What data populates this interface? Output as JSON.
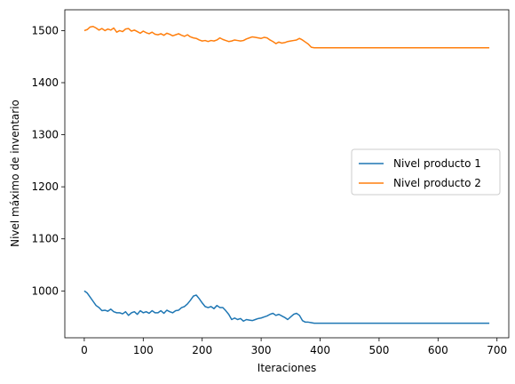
{
  "chart_data": {
    "type": "line",
    "title": "",
    "xlabel": "Iteraciones",
    "ylabel": "Nivel máximo de inventario",
    "xlim": [
      -33,
      720
    ],
    "ylim": [
      910,
      1540
    ],
    "xticks": [
      0,
      100,
      200,
      300,
      400,
      500,
      600,
      700
    ],
    "yticks": [
      1000,
      1100,
      1200,
      1300,
      1400,
      1500
    ],
    "grid": false,
    "legend_position": "center-right",
    "series": [
      {
        "name": "Nivel producto 1",
        "color": "#1f77b4",
        "x": [
          0,
          5,
          10,
          15,
          20,
          25,
          30,
          35,
          40,
          45,
          50,
          55,
          60,
          65,
          70,
          75,
          80,
          85,
          90,
          95,
          100,
          105,
          110,
          115,
          120,
          125,
          130,
          135,
          140,
          145,
          150,
          155,
          160,
          165,
          170,
          175,
          180,
          185,
          190,
          195,
          200,
          205,
          210,
          215,
          220,
          225,
          230,
          235,
          240,
          245,
          250,
          255,
          260,
          265,
          270,
          275,
          280,
          285,
          290,
          295,
          300,
          305,
          310,
          315,
          320,
          325,
          330,
          335,
          340,
          345,
          350,
          355,
          360,
          365,
          370,
          375,
          380,
          385,
          390,
          687
        ],
        "values": [
          1000,
          996,
          988,
          980,
          972,
          968,
          962,
          963,
          961,
          965,
          960,
          958,
          958,
          956,
          960,
          953,
          958,
          960,
          955,
          962,
          958,
          960,
          957,
          962,
          958,
          958,
          962,
          957,
          963,
          960,
          958,
          962,
          963,
          968,
          970,
          975,
          982,
          990,
          992,
          985,
          977,
          970,
          968,
          970,
          966,
          972,
          968,
          968,
          962,
          955,
          945,
          948,
          945,
          947,
          942,
          945,
          944,
          943,
          945,
          947,
          948,
          950,
          952,
          955,
          957,
          953,
          955,
          952,
          949,
          945,
          950,
          955,
          957,
          953,
          943,
          940,
          940,
          939,
          938,
          938
        ]
      },
      {
        "name": "Nivel producto 2",
        "color": "#ff7f0e",
        "x": [
          0,
          5,
          10,
          15,
          20,
          25,
          30,
          35,
          40,
          45,
          50,
          55,
          60,
          65,
          70,
          75,
          80,
          85,
          90,
          95,
          100,
          105,
          110,
          115,
          120,
          125,
          130,
          135,
          140,
          145,
          150,
          155,
          160,
          165,
          170,
          175,
          180,
          185,
          190,
          195,
          200,
          205,
          210,
          215,
          220,
          225,
          230,
          235,
          240,
          245,
          250,
          255,
          260,
          265,
          270,
          275,
          280,
          285,
          290,
          295,
          300,
          305,
          310,
          315,
          320,
          325,
          330,
          335,
          340,
          345,
          350,
          355,
          360,
          365,
          370,
          375,
          380,
          385,
          390,
          687
        ],
        "values": [
          1500,
          1502,
          1507,
          1508,
          1505,
          1501,
          1504,
          1500,
          1503,
          1501,
          1505,
          1497,
          1500,
          1498,
          1503,
          1504,
          1499,
          1501,
          1498,
          1495,
          1499,
          1496,
          1494,
          1497,
          1493,
          1492,
          1494,
          1491,
          1495,
          1493,
          1490,
          1492,
          1494,
          1491,
          1489,
          1492,
          1488,
          1486,
          1485,
          1482,
          1480,
          1481,
          1479,
          1481,
          1480,
          1482,
          1486,
          1483,
          1481,
          1479,
          1480,
          1482,
          1481,
          1480,
          1481,
          1484,
          1486,
          1488,
          1487,
          1486,
          1485,
          1487,
          1486,
          1482,
          1479,
          1475,
          1478,
          1476,
          1477,
          1479,
          1480,
          1481,
          1482,
          1485,
          1482,
          1478,
          1474,
          1468,
          1467,
          1467
        ]
      }
    ]
  }
}
